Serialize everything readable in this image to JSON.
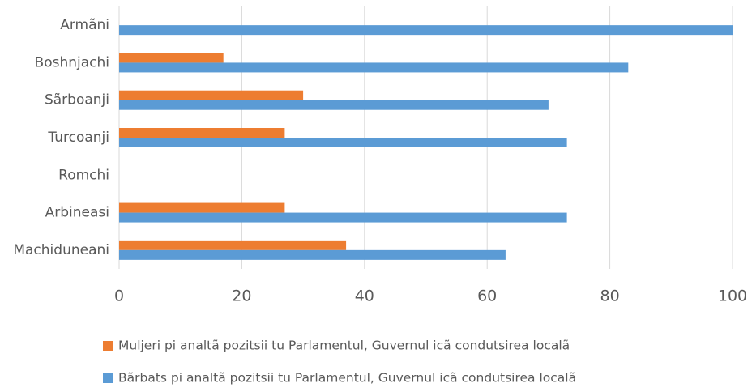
{
  "chart_data": {
    "type": "bar",
    "orientation": "horizontal",
    "categories": [
      "Armãni",
      "Boshnjachi",
      "Sãrboanji",
      "Turcoanji",
      "Romchi",
      "Arbineasi",
      "Machiduneani"
    ],
    "series": [
      {
        "name": "Muljeri pi analtã pozitsii tu Parlamentul, Guvernul icã condutsirea localã",
        "color": "#ed7d31",
        "values": [
          0,
          17,
          30,
          27,
          null,
          27,
          37
        ]
      },
      {
        "name": "Bãrbats pi analtã pozitsii tu Parlamentul, Guvernul icã condutsirea localã",
        "color": "#5b9bd5",
        "values": [
          100,
          83,
          70,
          73,
          null,
          73,
          63
        ]
      }
    ],
    "xlim": [
      0,
      100
    ],
    "xticks": [
      0,
      20,
      40,
      60,
      80,
      100
    ],
    "grid": true,
    "legend": "bottom"
  }
}
